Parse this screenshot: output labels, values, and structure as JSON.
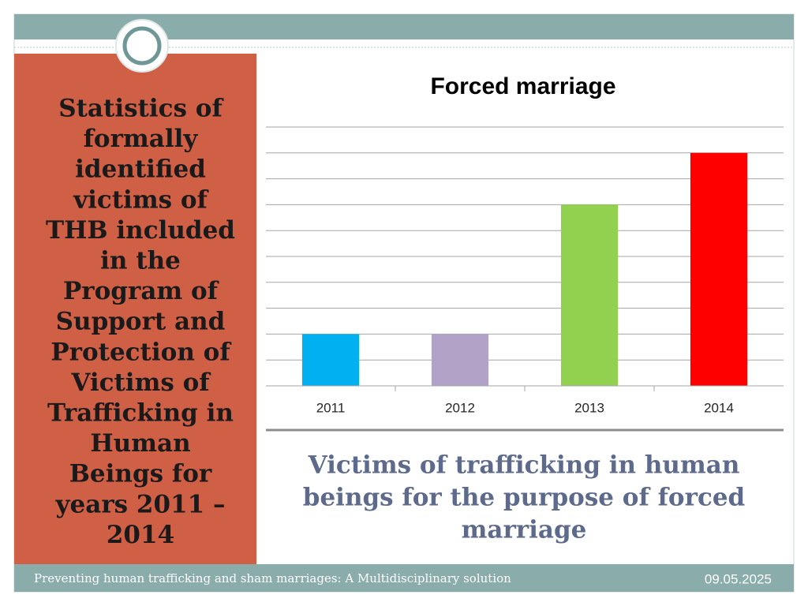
{
  "slide": {
    "heading": [
      "Statistics of",
      "formally",
      "identified",
      "victims of",
      "THB included",
      "in the",
      "Program of",
      "Support and",
      "Protection of",
      "Victims of",
      "Trafficking in",
      "Human",
      "Beings for",
      "years 2011 –",
      "2014"
    ],
    "caption": [
      "Victims of trafficking in human",
      "beings for the purpose of forced",
      "marriage"
    ],
    "footer": "Preventing human trafficking and sham marriages: A Multidisciplinary solution",
    "date": "09.05.2025"
  },
  "chart_data": {
    "type": "bar",
    "title": "Forced marriage",
    "categories": [
      "2011",
      "2012",
      "2013",
      "2014"
    ],
    "values": [
      2,
      2,
      7,
      9
    ],
    "colors": [
      "#00b0f0",
      "#b3a2c7",
      "#92d050",
      "#ff0000"
    ],
    "ylim": [
      0,
      10
    ],
    "yticks": [
      0,
      1,
      2,
      3,
      4,
      5,
      6,
      7,
      8,
      9,
      10
    ],
    "grid": true
  }
}
